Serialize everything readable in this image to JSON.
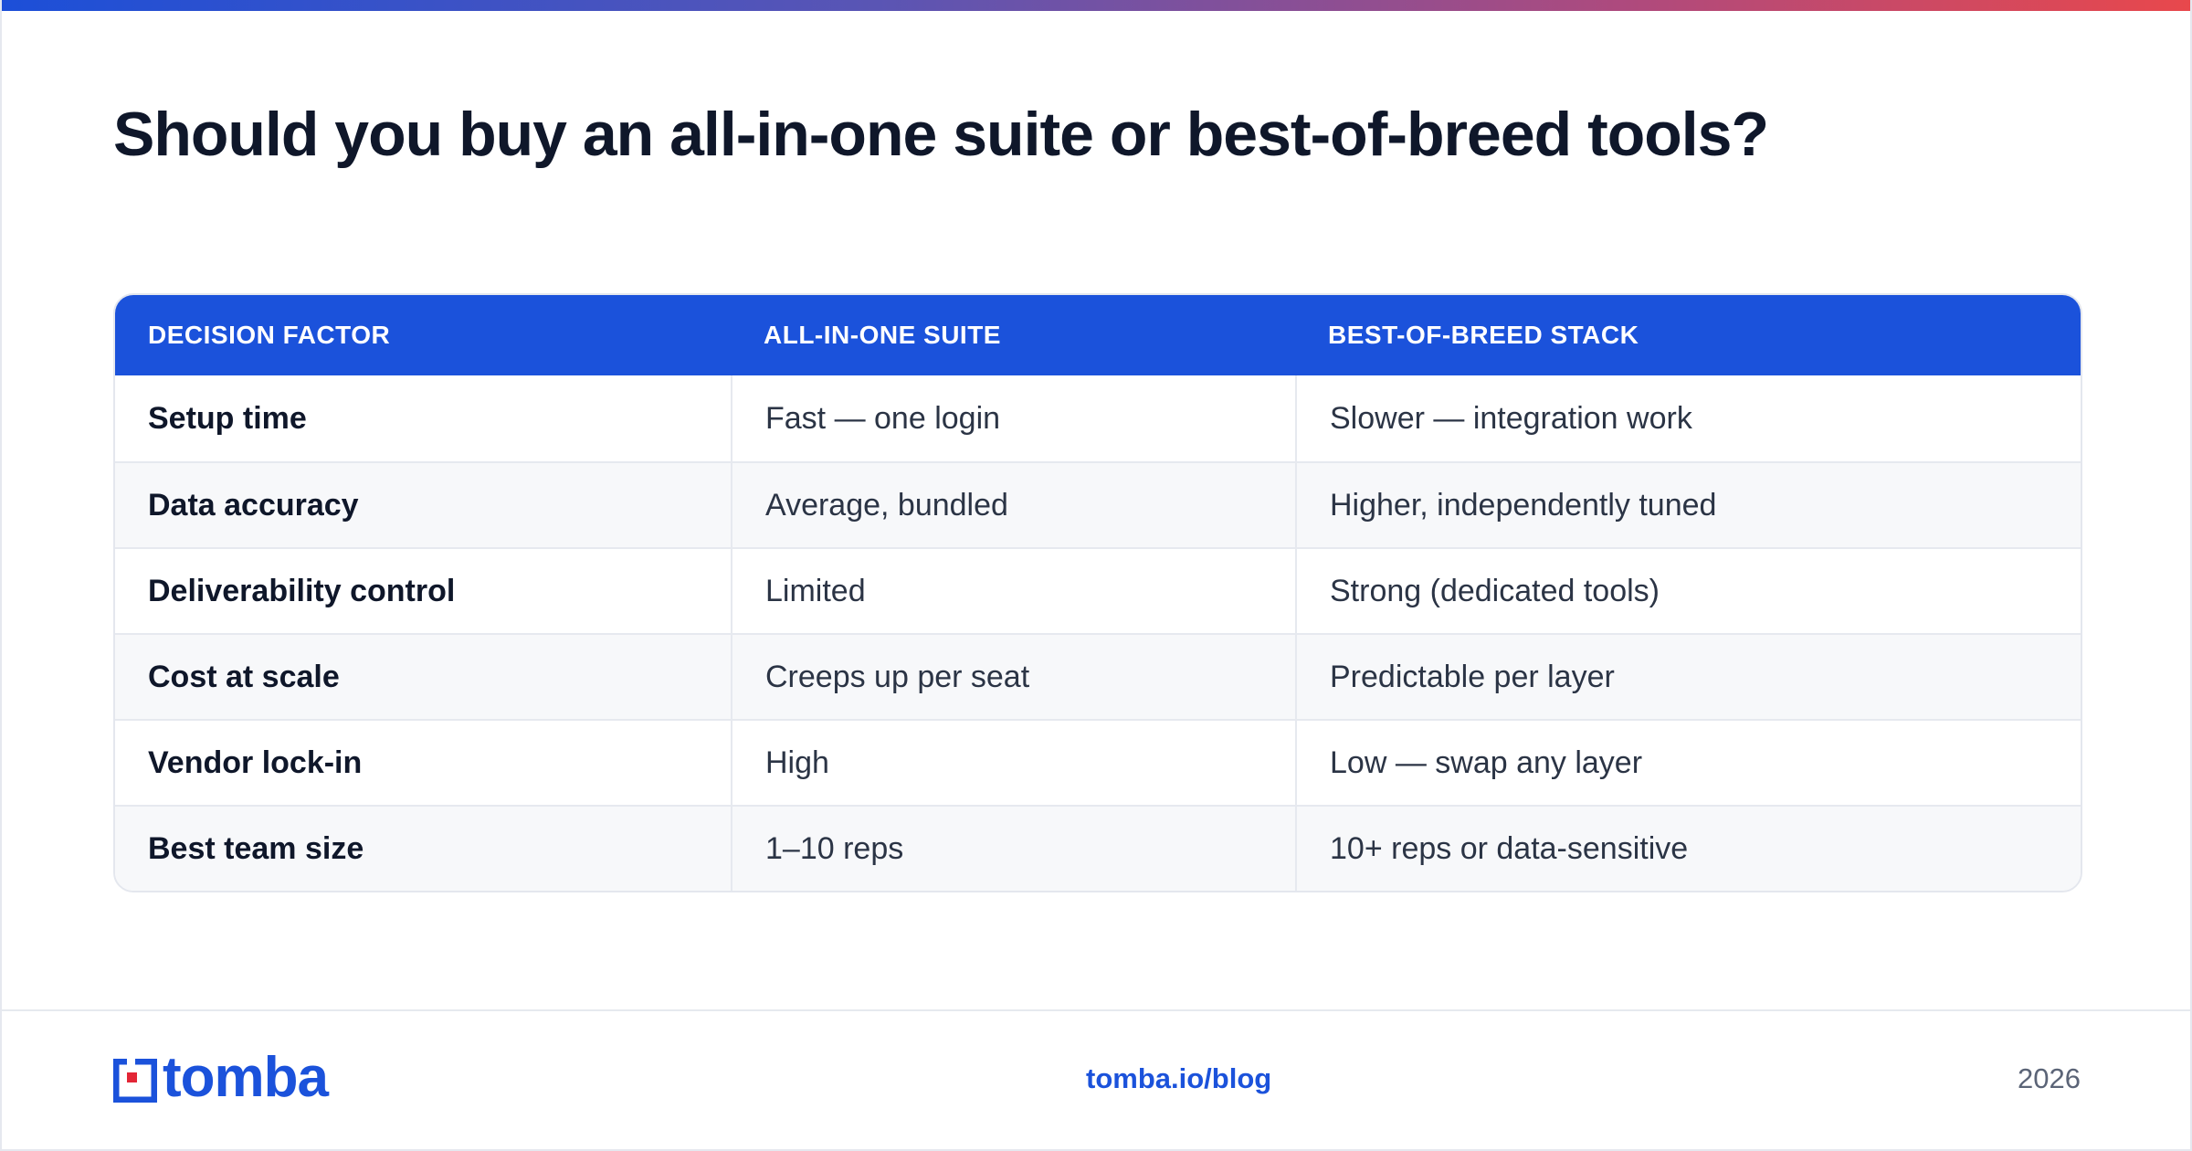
{
  "title": "Should you buy an all-in-one suite or best-of-breed tools?",
  "table": {
    "headers": [
      "DECISION FACTOR",
      "ALL-IN-ONE SUITE",
      "BEST-OF-BREED STACK"
    ],
    "rows": [
      {
        "factor": "Setup time",
        "suite": "Fast — one login",
        "stack": "Slower — integration work"
      },
      {
        "factor": "Data accuracy",
        "suite": "Average, bundled",
        "stack": "Higher, independently tuned"
      },
      {
        "factor": "Deliverability control",
        "suite": "Limited",
        "stack": "Strong (dedicated tools)"
      },
      {
        "factor": "Cost at scale",
        "suite": "Creeps up per seat",
        "stack": "Predictable per layer"
      },
      {
        "factor": "Vendor lock-in",
        "suite": "High",
        "stack": "Low — swap any layer"
      },
      {
        "factor": "Best team size",
        "suite": "1–10 reps",
        "stack": "10+ reps or data-sensitive"
      }
    ]
  },
  "footer": {
    "logo_text": "tomba",
    "logo_icon": "tomba-logo-icon",
    "link": "tomba.io/blog",
    "year": "2026"
  },
  "colors": {
    "accent": "#1b52db",
    "logo_red": "#e32636",
    "title": "#0f172a",
    "gradient_start": "#1c4fd8",
    "gradient_end": "#e8484c"
  }
}
